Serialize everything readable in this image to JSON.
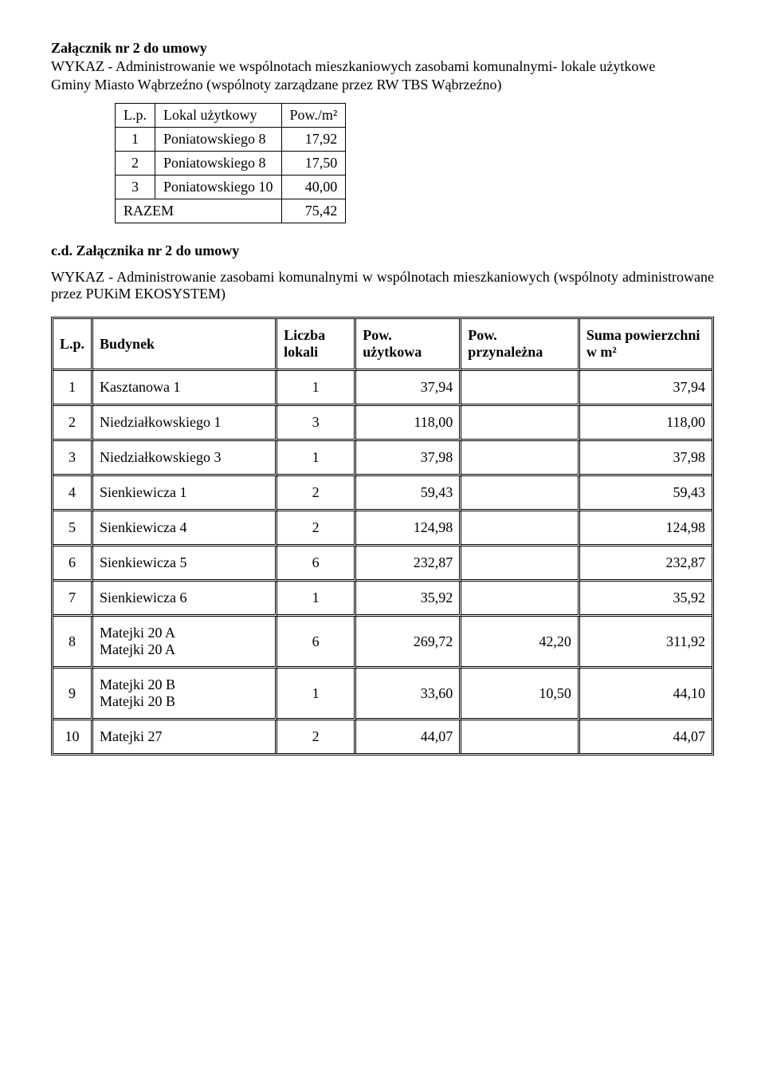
{
  "header": {
    "title": "Załącznik nr 2 do umowy",
    "line1": "WYKAZ - Administrowanie we wspólnotach mieszkaniowych zasobami komunalnymi- lokale użytkowe",
    "line2": "Gminy Miasto  Wąbrzeźno (wspólnoty zarządzane przez RW TBS Wąbrzeźno)"
  },
  "small_table": {
    "headers": {
      "lp": "L.p.",
      "lokal": "Lokal użytkowy",
      "pow": "Pow./m²"
    },
    "rows": [
      {
        "lp": "1",
        "name": "Poniatowskiego  8",
        "val": "17,92"
      },
      {
        "lp": "2",
        "name": "Poniatowskiego 8",
        "val": "17,50"
      },
      {
        "lp": "3",
        "name": "Poniatowskiego 10",
        "val": "40,00"
      }
    ],
    "total_label": "RAZEM",
    "total_val": "75,42"
  },
  "mid": {
    "subhead": "c.d. Załącznika nr 2 do umowy",
    "para": "WYKAZ - Administrowanie zasobami komunalnymi w wspólnotach mieszkaniowych (wspólnoty administrowane przez PUKiM EKOSYSTEM)"
  },
  "main_table": {
    "headers": {
      "lp": "L.p.",
      "budynek": "Budynek",
      "liczba": "Liczba lokali",
      "pow_u": "Pow. użytkowa",
      "pow_p": "Pow. przynależna",
      "suma": "Suma powierzchni w m²"
    },
    "rows": [
      {
        "lp": "1",
        "name": "Kasztanowa 1",
        "liczba": "1",
        "pu": "37,94",
        "pn": "",
        "suma": "37,94"
      },
      {
        "lp": "2",
        "name": "Niedziałkowskiego 1",
        "liczba": "3",
        "pu": "118,00",
        "pn": "",
        "suma": "118,00"
      },
      {
        "lp": "3",
        "name": "Niedziałkowskiego 3",
        "liczba": "1",
        "pu": "37,98",
        "pn": "",
        "suma": "37,98"
      },
      {
        "lp": "4",
        "name": "Sienkiewicza 1",
        "liczba": "2",
        "pu": "59,43",
        "pn": "",
        "suma": "59,43"
      },
      {
        "lp": "5",
        "name": "Sienkiewicza 4",
        "liczba": "2",
        "pu": "124,98",
        "pn": "",
        "suma": "124,98"
      },
      {
        "lp": "6",
        "name": "Sienkiewicza 5",
        "liczba": "6",
        "pu": "232,87",
        "pn": "",
        "suma": "232,87"
      },
      {
        "lp": "7",
        "name": "Sienkiewicza 6",
        "liczba": "1",
        "pu": "35,92",
        "pn": "",
        "suma": "35,92"
      },
      {
        "lp": "8",
        "name": "Matejki 20 A\nMatejki 20 A",
        "liczba": "6",
        "pu": "269,72",
        "pn": "42,20",
        "suma": "311,92"
      },
      {
        "lp": "9",
        "name": "Matejki 20 B\nMatejki 20 B",
        "liczba": "1",
        "pu": "33,60",
        "pn": "10,50",
        "suma": "44,10"
      },
      {
        "lp": "10",
        "name": "Matejki 27",
        "liczba": "2",
        "pu": "44,07",
        "pn": "",
        "suma": "44,07"
      }
    ]
  },
  "style": {
    "font": "Times New Roman",
    "body_fontsize_pt": 14,
    "border_color": "#000000",
    "background_color": "#ffffff"
  }
}
